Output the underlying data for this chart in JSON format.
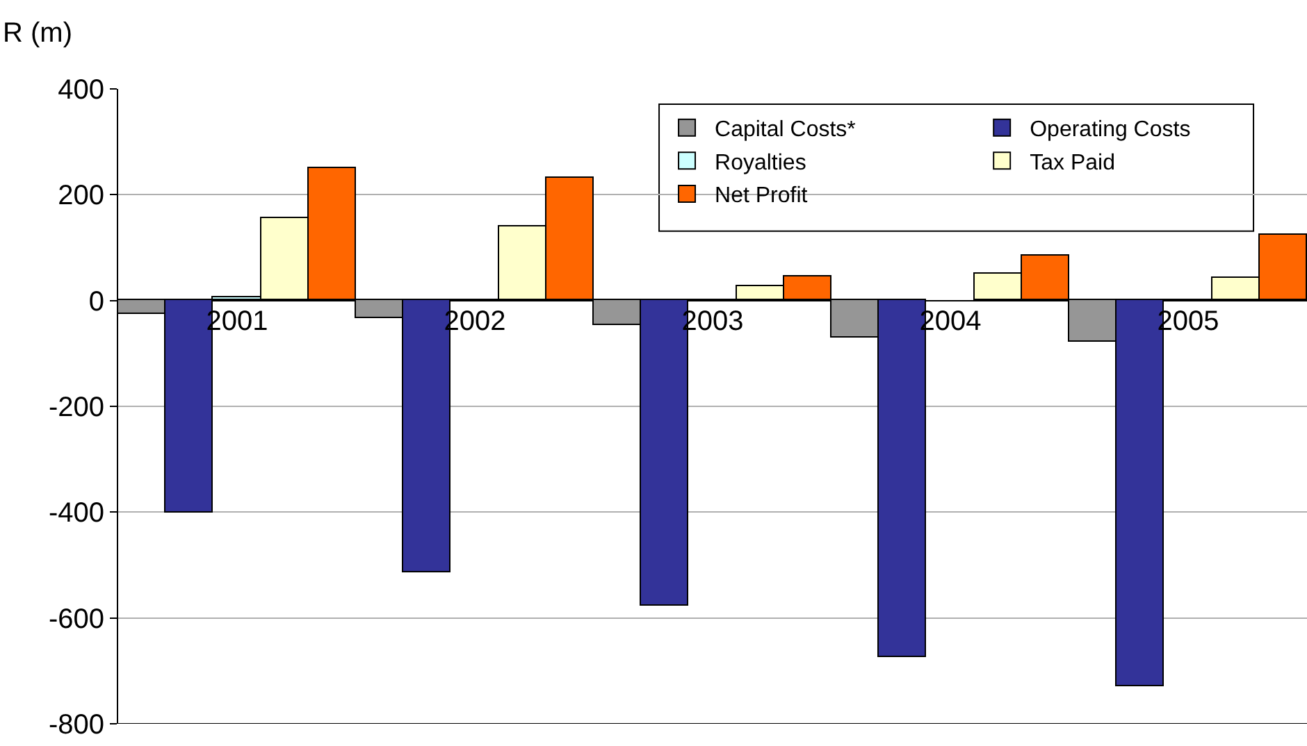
{
  "chart_data": {
    "type": "bar",
    "ylabel": "R (m)",
    "categories": [
      "2001",
      "2002",
      "2003",
      "2004",
      "2005"
    ],
    "series": [
      {
        "name": "Capital Costs*",
        "color": "#969696",
        "values": [
          -25,
          -33,
          -46,
          -70,
          -77
        ]
      },
      {
        "name": "Operating Costs",
        "color": "#333399",
        "values": [
          -402,
          -515,
          -578,
          -675,
          -730
        ]
      },
      {
        "name": "Royalties",
        "color": "#ccffff",
        "values": [
          5,
          2,
          2,
          null,
          2
        ]
      },
      {
        "name": "Tax Paid",
        "color": "#ffffcc",
        "values": [
          155,
          140,
          28,
          52,
          42
        ]
      },
      {
        "name": "Net Profit",
        "color": "#ff6600",
        "values": [
          250,
          232,
          46,
          85,
          125
        ]
      }
    ],
    "ylim": [
      -800,
      400
    ],
    "yticks": [
      -800,
      -600,
      -400,
      -200,
      0,
      200,
      400
    ],
    "grid": "y",
    "legend": "top right"
  }
}
